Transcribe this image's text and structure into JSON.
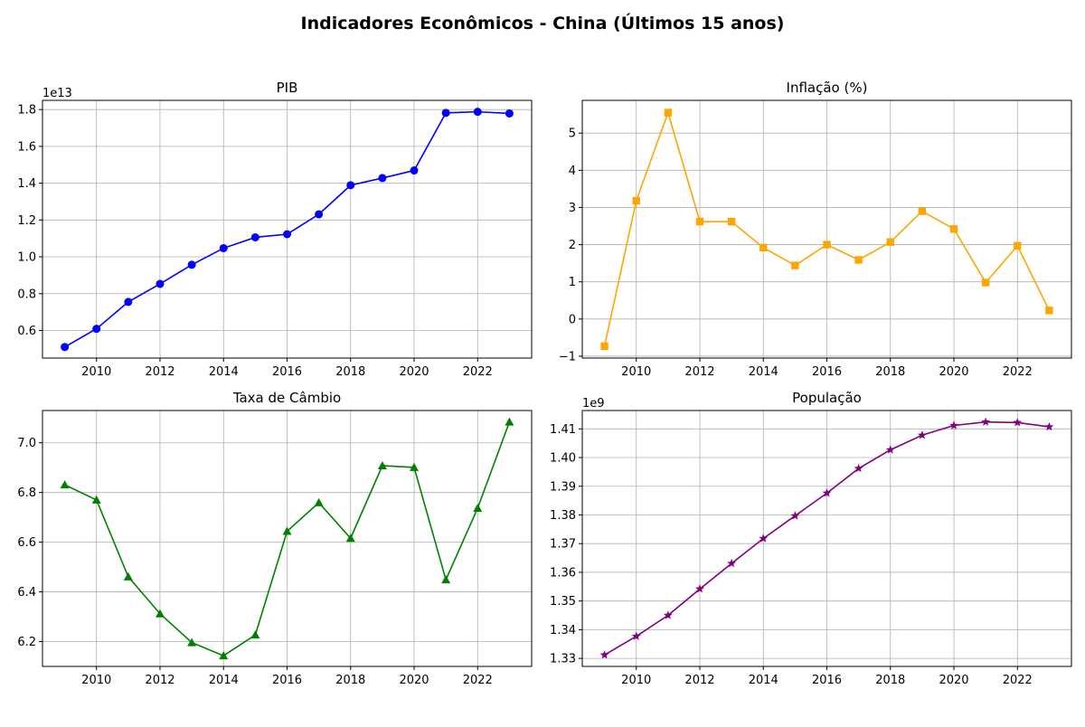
{
  "figure": {
    "title": "Indicadores Econômicos - China (Últimos 15 anos)"
  },
  "chart_data": [
    {
      "type": "line",
      "title": "PIB",
      "x": [
        2009,
        2010,
        2011,
        2012,
        2013,
        2014,
        2015,
        2016,
        2017,
        2018,
        2019,
        2020,
        2021,
        2022,
        2023
      ],
      "series": [
        {
          "values": [
            5100000000000.0,
            6090000000000.0,
            7550000000000.0,
            8530000000000.0,
            9570000000000.0,
            10470000000000.0,
            11060000000000.0,
            11230000000000.0,
            12310000000000.0,
            13890000000000.0,
            14280000000000.0,
            14690000000000.0,
            17820000000000.0,
            17880000000000.0,
            17790000000000.0
          ],
          "color": "#0000ff",
          "marker": "circle"
        }
      ],
      "xlim": [
        2008.3,
        2023.7
      ],
      "ylim": [
        4500000000000.0,
        18500000000000.0
      ],
      "xticks": [
        2010,
        2012,
        2014,
        2016,
        2018,
        2020,
        2022
      ],
      "yticks": [
        6000000000000.0,
        8000000000000.0,
        10000000000000.0,
        12000000000000.0,
        14000000000000.0,
        16000000000000.0,
        18000000000000.0
      ],
      "ytick_labels": [
        "0.6",
        "0.8",
        "1.0",
        "1.2",
        "1.4",
        "1.6",
        "1.8"
      ],
      "offset_label": "1e13",
      "grid": true
    },
    {
      "type": "line",
      "title": "Inflação (%)",
      "x": [
        2009,
        2010,
        2011,
        2012,
        2013,
        2014,
        2015,
        2016,
        2017,
        2018,
        2019,
        2020,
        2021,
        2022,
        2023
      ],
      "series": [
        {
          "values": [
            -0.73,
            3.18,
            5.55,
            2.62,
            2.62,
            1.92,
            1.44,
            2.0,
            1.59,
            2.07,
            2.9,
            2.42,
            0.98,
            1.97,
            0.23
          ],
          "color": "#ffa500",
          "marker": "square"
        }
      ],
      "xlim": [
        2008.3,
        2023.7
      ],
      "ylim": [
        -1.05,
        5.88
      ],
      "xticks": [
        2010,
        2012,
        2014,
        2016,
        2018,
        2020,
        2022
      ],
      "yticks": [
        -1,
        0,
        1,
        2,
        3,
        4,
        5
      ],
      "ytick_labels": [
        "−1",
        "0",
        "1",
        "2",
        "3",
        "4",
        "5"
      ],
      "offset_label": "",
      "grid": true
    },
    {
      "type": "line",
      "title": "Taxa de Câmbio",
      "x": [
        2009,
        2010,
        2011,
        2012,
        2013,
        2014,
        2015,
        2016,
        2017,
        2018,
        2019,
        2020,
        2021,
        2022,
        2023
      ],
      "series": [
        {
          "values": [
            6.831,
            6.77,
            6.461,
            6.312,
            6.196,
            6.143,
            6.227,
            6.644,
            6.759,
            6.616,
            6.908,
            6.901,
            6.449,
            6.737,
            7.084
          ],
          "color": "#008000",
          "marker": "triangle"
        }
      ],
      "xlim": [
        2008.3,
        2023.7
      ],
      "ylim": [
        6.1,
        7.13
      ],
      "xticks": [
        2010,
        2012,
        2014,
        2016,
        2018,
        2020,
        2022
      ],
      "yticks": [
        6.2,
        6.4,
        6.6,
        6.8,
        7.0
      ],
      "ytick_labels": [
        "6.2",
        "6.4",
        "6.6",
        "6.8",
        "7.0"
      ],
      "offset_label": "",
      "grid": true
    },
    {
      "type": "line",
      "title": "População",
      "x": [
        2009,
        2010,
        2011,
        2012,
        2013,
        2014,
        2015,
        2016,
        2017,
        2018,
        2019,
        2020,
        2021,
        2022,
        2023
      ],
      "series": [
        {
          "values": [
            1331200000.0,
            1337700000.0,
            1345000000.0,
            1354200000.0,
            1363100000.0,
            1371800000.0,
            1379700000.0,
            1387600000.0,
            1396200000.0,
            1402700000.0,
            1407800000.0,
            1411200000.0,
            1412400000.0,
            1412200000.0,
            1410700000.0
          ],
          "color": "#800080",
          "marker": "star"
        }
      ],
      "xlim": [
        2008.3,
        2023.7
      ],
      "ylim": [
        1327200000.0,
        1416400000.0
      ],
      "xticks": [
        2010,
        2012,
        2014,
        2016,
        2018,
        2020,
        2022
      ],
      "yticks": [
        1330000000.0,
        1340000000.0,
        1350000000.0,
        1360000000.0,
        1370000000.0,
        1380000000.0,
        1390000000.0,
        1400000000.0,
        1410000000.0
      ],
      "ytick_labels": [
        "1.33",
        "1.34",
        "1.35",
        "1.36",
        "1.37",
        "1.38",
        "1.39",
        "1.40",
        "1.41"
      ],
      "offset_label": "1e9",
      "grid": true
    }
  ]
}
